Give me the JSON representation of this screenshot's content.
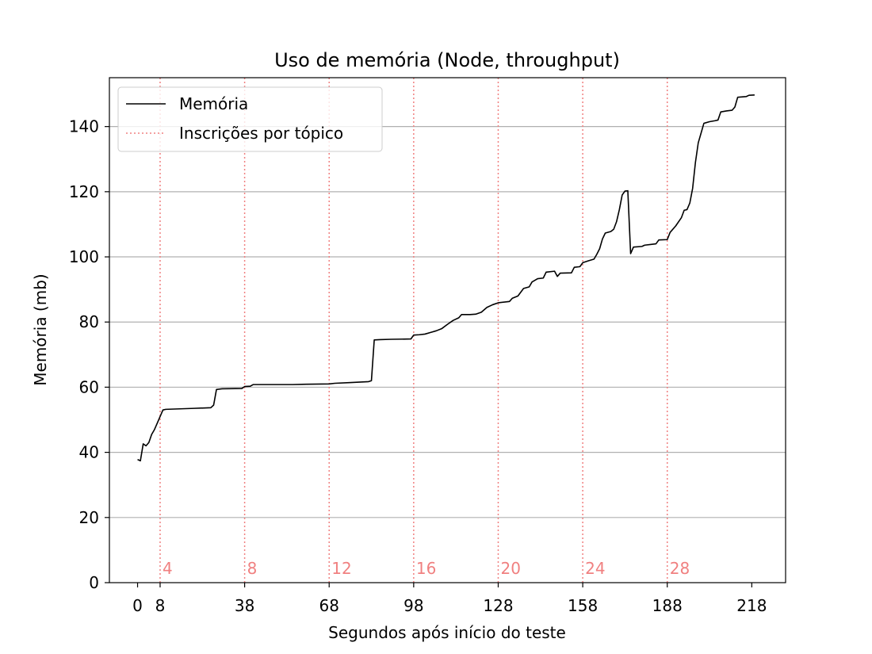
{
  "chart_data": {
    "type": "line",
    "title": "Uso de memória (Node, throughput)",
    "xlabel": "Segundos após início do teste",
    "ylabel": "Memória (mb)",
    "xlim": [
      -10,
      230
    ],
    "ylim": [
      0,
      155
    ],
    "xticks": [
      0,
      8,
      38,
      68,
      98,
      128,
      158,
      188,
      218
    ],
    "yticks": [
      0,
      20,
      40,
      60,
      80,
      100,
      120,
      140
    ],
    "grid": "horizontal",
    "legend_position": "top-left",
    "line_color": "#000000",
    "marker_color": "#f08080",
    "series": [
      {
        "name": "Memória",
        "points": [
          [
            0,
            37.8
          ],
          [
            1,
            37.4
          ],
          [
            2,
            42.6
          ],
          [
            3,
            42.0
          ],
          [
            4,
            43.0
          ],
          [
            5,
            45.5
          ],
          [
            6,
            47.0
          ],
          [
            7,
            49.0
          ],
          [
            8,
            51.0
          ],
          [
            9,
            53.0
          ],
          [
            10,
            53.2
          ],
          [
            20,
            53.5
          ],
          [
            26,
            53.7
          ],
          [
            27,
            54.5
          ],
          [
            28,
            59.3
          ],
          [
            30,
            59.5
          ],
          [
            37,
            59.6
          ],
          [
            38,
            60.2
          ],
          [
            40,
            60.3
          ],
          [
            41,
            60.8
          ],
          [
            55,
            60.8
          ],
          [
            60,
            60.9
          ],
          [
            68,
            61.0
          ],
          [
            70,
            61.2
          ],
          [
            75,
            61.4
          ],
          [
            82,
            61.7
          ],
          [
            83,
            62.0
          ],
          [
            84,
            74.5
          ],
          [
            86,
            74.6
          ],
          [
            90,
            74.7
          ],
          [
            97,
            74.8
          ],
          [
            98,
            76.0
          ],
          [
            100,
            76.1
          ],
          [
            102,
            76.3
          ],
          [
            104,
            76.8
          ],
          [
            106,
            77.3
          ],
          [
            108,
            78.0
          ],
          [
            110,
            79.3
          ],
          [
            112,
            80.5
          ],
          [
            114,
            81.3
          ],
          [
            115,
            82.3
          ],
          [
            118,
            82.3
          ],
          [
            120,
            82.4
          ],
          [
            122,
            83.0
          ],
          [
            124,
            84.5
          ],
          [
            126,
            85.3
          ],
          [
            128,
            85.9
          ],
          [
            132,
            86.3
          ],
          [
            133,
            87.3
          ],
          [
            135,
            88.0
          ],
          [
            137,
            90.3
          ],
          [
            139,
            90.8
          ],
          [
            140,
            92.3
          ],
          [
            142,
            93.3
          ],
          [
            144,
            93.5
          ],
          [
            145,
            95.3
          ],
          [
            148,
            95.6
          ],
          [
            149,
            94.0
          ],
          [
            150,
            95.0
          ],
          [
            154,
            95.1
          ],
          [
            155,
            96.8
          ],
          [
            157,
            97.0
          ],
          [
            158,
            98.2
          ],
          [
            160,
            98.8
          ],
          [
            162,
            99.3
          ],
          [
            163,
            100.8
          ],
          [
            164,
            102.5
          ],
          [
            165,
            105.5
          ],
          [
            166,
            107.3
          ],
          [
            168,
            107.8
          ],
          [
            169,
            108.5
          ],
          [
            170,
            110.8
          ],
          [
            171,
            114.5
          ],
          [
            172,
            119.0
          ],
          [
            173,
            120.2
          ],
          [
            174,
            120.3
          ],
          [
            175,
            101.0
          ],
          [
            176,
            103.0
          ],
          [
            179,
            103.2
          ],
          [
            180,
            103.6
          ],
          [
            182,
            103.8
          ],
          [
            184,
            104.0
          ],
          [
            185,
            105.2
          ],
          [
            188,
            105.3
          ],
          [
            189,
            107.5
          ],
          [
            191,
            109.5
          ],
          [
            193,
            112.0
          ],
          [
            194,
            114.3
          ],
          [
            195,
            114.5
          ],
          [
            196,
            116.5
          ],
          [
            197,
            121.0
          ],
          [
            198,
            129.0
          ],
          [
            199,
            135.0
          ],
          [
            200,
            138.0
          ],
          [
            201,
            141.0
          ],
          [
            203,
            141.5
          ],
          [
            205,
            141.8
          ],
          [
            206,
            142.0
          ],
          [
            207,
            144.5
          ],
          [
            209,
            144.8
          ],
          [
            211,
            145.0
          ],
          [
            212,
            146.0
          ],
          [
            213,
            149.0
          ],
          [
            216,
            149.2
          ],
          [
            217,
            149.6
          ],
          [
            219,
            149.7
          ]
        ]
      }
    ],
    "legend_marker_name": "Inscrições por tópico",
    "markers": [
      {
        "x": 8,
        "label": "4"
      },
      {
        "x": 38,
        "label": "8"
      },
      {
        "x": 68,
        "label": "12"
      },
      {
        "x": 98,
        "label": "16"
      },
      {
        "x": 128,
        "label": "20"
      },
      {
        "x": 158,
        "label": "24"
      },
      {
        "x": 188,
        "label": "28"
      }
    ]
  }
}
